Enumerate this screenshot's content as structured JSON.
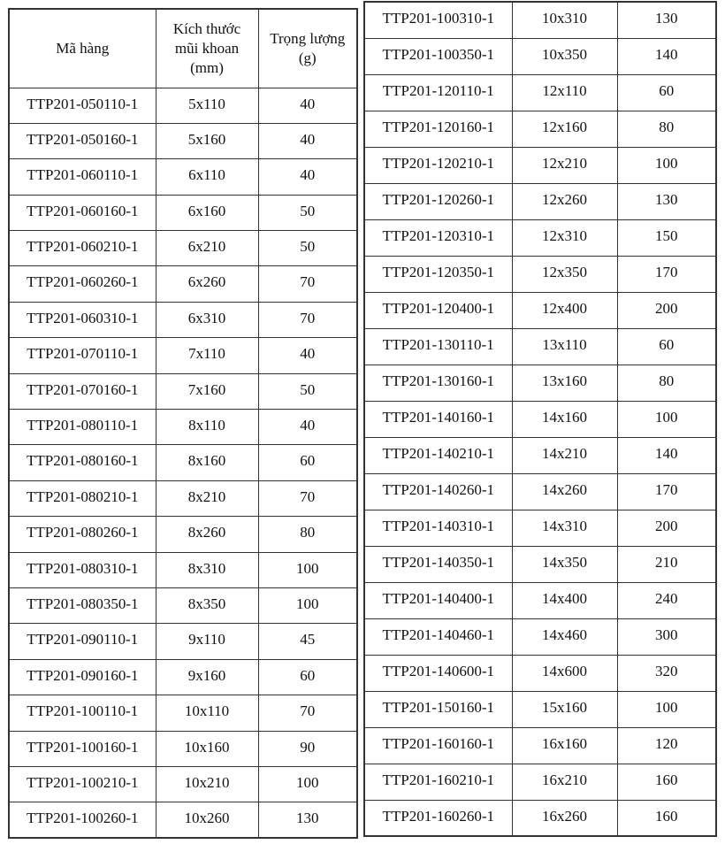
{
  "headers": {
    "code": "Mã hàng",
    "size_line1": "Kích thước",
    "size_line2": "mũi khoan",
    "size_line3": "(mm)",
    "weight_line1": "Trọng lượng",
    "weight_line2": "(g)"
  },
  "left_rows": [
    [
      "TTP201-050110-1",
      "5x110",
      "40"
    ],
    [
      "TTP201-050160-1",
      "5x160",
      "40"
    ],
    [
      "TTP201-060110-1",
      "6x110",
      "40"
    ],
    [
      "TTP201-060160-1",
      "6x160",
      "50"
    ],
    [
      "TTP201-060210-1",
      "6x210",
      "50"
    ],
    [
      "TTP201-060260-1",
      "6x260",
      "70"
    ],
    [
      "TTP201-060310-1",
      "6x310",
      "70"
    ],
    [
      "TTP201-070110-1",
      "7x110",
      "40"
    ],
    [
      "TTP201-070160-1",
      "7x160",
      "50"
    ],
    [
      "TTP201-080110-1",
      "8x110",
      "40"
    ],
    [
      "TTP201-080160-1",
      "8x160",
      "60"
    ],
    [
      "TTP201-080210-1",
      "8x210",
      "70"
    ],
    [
      "TTP201-080260-1",
      "8x260",
      "80"
    ],
    [
      "TTP201-080310-1",
      "8x310",
      "100"
    ],
    [
      "TTP201-080350-1",
      "8x350",
      "100"
    ],
    [
      "TTP201-090110-1",
      "9x110",
      "45"
    ],
    [
      "TTP201-090160-1",
      "9x160",
      "60"
    ],
    [
      "TTP201-100110-1",
      "10x110",
      "70"
    ],
    [
      "TTP201-100160-1",
      "10x160",
      "90"
    ],
    [
      "TTP201-100210-1",
      "10x210",
      "100"
    ],
    [
      "TTP201-100260-1",
      "10x260",
      "130"
    ]
  ],
  "right_rows": [
    [
      "TTP201-100310-1",
      "10x310",
      "130"
    ],
    [
      "TTP201-100350-1",
      "10x350",
      "140"
    ],
    [
      "TTP201-120110-1",
      "12x110",
      "60"
    ],
    [
      "TTP201-120160-1",
      "12x160",
      "80"
    ],
    [
      "TTP201-120210-1",
      "12x210",
      "100"
    ],
    [
      "TTP201-120260-1",
      "12x260",
      "130"
    ],
    [
      "TTP201-120310-1",
      "12x310",
      "150"
    ],
    [
      "TTP201-120350-1",
      "12x350",
      "170"
    ],
    [
      "TTP201-120400-1",
      "12x400",
      "200"
    ],
    [
      "TTP201-130110-1",
      "13x110",
      "60"
    ],
    [
      "TTP201-130160-1",
      "13x160",
      "80"
    ],
    [
      "TTP201-140160-1",
      "14x160",
      "100"
    ],
    [
      "TTP201-140210-1",
      "14x210",
      "140"
    ],
    [
      "TTP201-140260-1",
      "14x260",
      "170"
    ],
    [
      "TTP201-140310-1",
      "14x310",
      "200"
    ],
    [
      "TTP201-140350-1",
      "14x350",
      "210"
    ],
    [
      "TTP201-140400-1",
      "14x400",
      "240"
    ],
    [
      "TTP201-140460-1",
      "14x460",
      "300"
    ],
    [
      "TTP201-140600-1",
      "14x600",
      "320"
    ],
    [
      "TTP201-150160-1",
      "15x160",
      "100"
    ],
    [
      "TTP201-160160-1",
      "16x160",
      "120"
    ],
    [
      "TTP201-160210-1",
      "16x210",
      "160"
    ],
    [
      "TTP201-160260-1",
      "16x260",
      "160"
    ]
  ]
}
